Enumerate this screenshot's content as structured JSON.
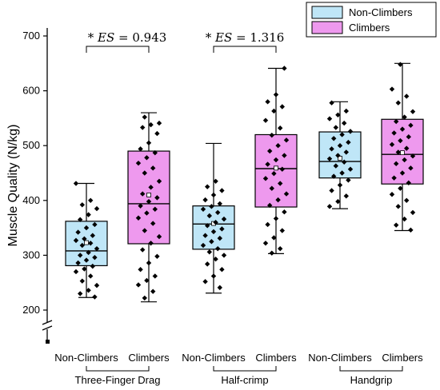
{
  "chart_data": {
    "type": "box",
    "ylabel": "Muscle Quality (N/kg)",
    "ylim": [
      200,
      700
    ],
    "yticks": [
      200,
      300,
      400,
      500,
      600,
      700
    ],
    "axis_break": true,
    "grid": false,
    "legend": {
      "position": "top-right",
      "entries": [
        {
          "name": "Non-Climbers",
          "color": "#bfe6f7"
        },
        {
          "name": "Climbers",
          "color": "#ee99ee"
        }
      ]
    },
    "groups": [
      {
        "label": "Three-Finger Drag",
        "effect_size": "$* ES = 0.943$"
      },
      {
        "label": "Half-crimp",
        "effect_size": "$* ES = 1.316$"
      },
      {
        "label": "Handgrip",
        "effect_size": ""
      }
    ],
    "boxes": [
      {
        "group": 0,
        "category": "Non-Climbers",
        "color": "#bfe6f7",
        "min": 223,
        "q1": 281,
        "median": 308,
        "mean": 323,
        "q3": 362,
        "max": 431,
        "points": [
          431,
          400,
          392,
          385,
          374,
          365,
          356,
          350,
          342,
          336,
          330,
          327,
          322,
          318,
          312,
          305,
          300,
          296,
          291,
          286,
          280,
          275,
          270,
          262,
          253,
          245,
          236,
          230,
          224
        ]
      },
      {
        "group": 0,
        "category": "Climbers",
        "color": "#ee99ee",
        "min": 215,
        "q1": 321,
        "median": 394,
        "mean": 410,
        "q3": 490,
        "max": 560,
        "points": [
          552,
          541,
          538,
          533,
          522,
          505,
          494,
          487,
          478,
          468,
          459,
          450,
          435,
          424,
          412,
          405,
          398,
          390,
          384,
          377,
          368,
          358,
          345,
          334,
          322,
          310,
          298,
          286,
          274,
          262,
          254,
          246,
          234,
          222
        ]
      },
      {
        "group": 1,
        "category": "Non-Climbers",
        "color": "#bfe6f7",
        "min": 231,
        "q1": 311,
        "median": 357,
        "mean": 358,
        "q3": 390,
        "max": 504,
        "points": [
          435,
          425,
          418,
          410,
          401,
          394,
          389,
          384,
          378,
          372,
          366,
          360,
          354,
          348,
          343,
          336,
          331,
          325,
          318,
          312,
          306,
          300,
          293,
          284,
          274,
          262,
          252,
          241
        ]
      },
      {
        "group": 1,
        "category": "Climbers",
        "color": "#ee99ee",
        "min": 303,
        "q1": 388,
        "median": 458,
        "mean": 459,
        "q3": 520,
        "max": 641,
        "points": [
          641,
          593,
          580,
          571,
          563,
          546,
          532,
          519,
          510,
          500,
          490,
          482,
          474,
          466,
          457,
          449,
          440,
          431,
          422,
          412,
          401,
          391,
          379,
          367,
          356,
          345,
          332,
          322,
          312,
          304
        ]
      },
      {
        "group": 2,
        "category": "Non-Climbers",
        "color": "#bfe6f7",
        "min": 385,
        "q1": 441,
        "median": 471,
        "mean": 477,
        "q3": 525,
        "max": 580,
        "points": [
          578,
          563,
          556,
          549,
          541,
          533,
          526,
          520,
          513,
          506,
          500,
          494,
          488,
          482,
          476,
          470,
          463,
          457,
          450,
          444,
          437,
          428,
          418,
          408,
          398,
          389
        ]
      },
      {
        "group": 2,
        "category": "Climbers",
        "color": "#ee99ee",
        "min": 345,
        "q1": 430,
        "median": 484,
        "mean": 487,
        "q3": 548,
        "max": 650,
        "points": [
          648,
          603,
          590,
          578,
          562,
          552,
          544,
          537,
          530,
          523,
          516,
          509,
          502,
          495,
          488,
          481,
          474,
          467,
          459,
          450,
          441,
          432,
          422,
          411,
          400,
          389,
          378,
          366,
          355,
          346
        ]
      }
    ]
  }
}
